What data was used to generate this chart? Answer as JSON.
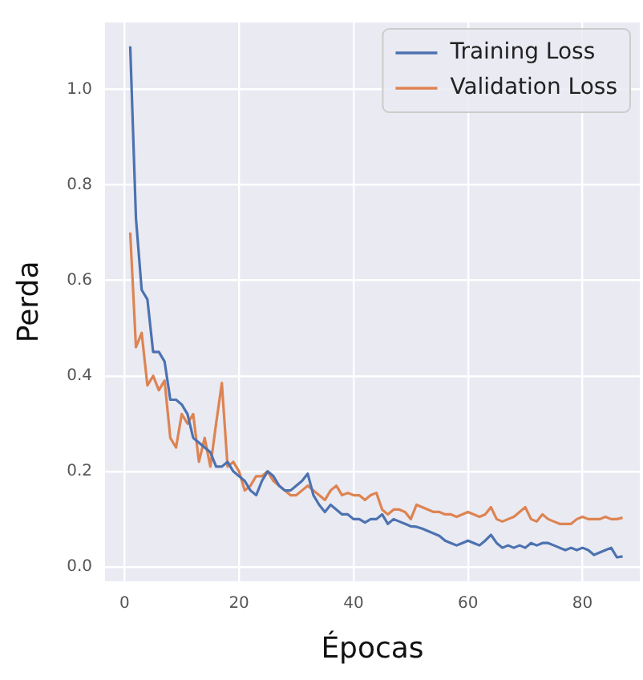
{
  "chart_data": {
    "type": "line",
    "xlabel": "Épocas",
    "ylabel": "Perda",
    "x": [
      1,
      2,
      3,
      4,
      5,
      6,
      7,
      8,
      9,
      10,
      11,
      12,
      13,
      14,
      15,
      16,
      17,
      18,
      19,
      20,
      21,
      22,
      23,
      24,
      25,
      26,
      27,
      28,
      29,
      30,
      31,
      32,
      33,
      34,
      35,
      36,
      37,
      38,
      39,
      40,
      41,
      42,
      43,
      44,
      45,
      46,
      47,
      48,
      49,
      50,
      51,
      52,
      53,
      54,
      55,
      56,
      57,
      58,
      59,
      60,
      61,
      62,
      63,
      64,
      65,
      66,
      67,
      68,
      69,
      70,
      71,
      72,
      73,
      74,
      75,
      76,
      77,
      78,
      79,
      80,
      81,
      82,
      83,
      84,
      85,
      86,
      87
    ],
    "series": [
      {
        "name": "Training Loss",
        "color": "#4c72b0",
        "values": [
          1.09,
          0.73,
          0.58,
          0.56,
          0.45,
          0.45,
          0.43,
          0.35,
          0.35,
          0.34,
          0.32,
          0.27,
          0.26,
          0.25,
          0.24,
          0.21,
          0.21,
          0.22,
          0.2,
          0.19,
          0.18,
          0.16,
          0.15,
          0.18,
          0.2,
          0.19,
          0.17,
          0.16,
          0.16,
          0.17,
          0.18,
          0.195,
          0.15,
          0.13,
          0.115,
          0.13,
          0.12,
          0.11,
          0.11,
          0.1,
          0.1,
          0.093,
          0.1,
          0.1,
          0.11,
          0.09,
          0.1,
          0.095,
          0.09,
          0.085,
          0.084,
          0.08,
          0.075,
          0.07,
          0.065,
          0.055,
          0.05,
          0.045,
          0.05,
          0.055,
          0.05,
          0.045,
          0.055,
          0.067,
          0.05,
          0.04,
          0.045,
          0.04,
          0.045,
          0.04,
          0.05,
          0.045,
          0.05,
          0.05,
          0.045,
          0.04,
          0.035,
          0.04,
          0.035,
          0.04,
          0.035,
          0.025,
          0.03,
          0.035,
          0.04,
          0.02,
          0.022
        ]
      },
      {
        "name": "Validation Loss",
        "color": "#dd8452",
        "values": [
          0.7,
          0.46,
          0.49,
          0.38,
          0.4,
          0.37,
          0.39,
          0.27,
          0.25,
          0.32,
          0.3,
          0.32,
          0.22,
          0.27,
          0.21,
          0.3,
          0.385,
          0.21,
          0.22,
          0.2,
          0.16,
          0.17,
          0.19,
          0.19,
          0.2,
          0.18,
          0.17,
          0.16,
          0.15,
          0.15,
          0.16,
          0.17,
          0.16,
          0.15,
          0.14,
          0.16,
          0.17,
          0.15,
          0.155,
          0.15,
          0.15,
          0.14,
          0.15,
          0.155,
          0.12,
          0.11,
          0.12,
          0.12,
          0.115,
          0.1,
          0.13,
          0.125,
          0.12,
          0.115,
          0.115,
          0.11,
          0.11,
          0.105,
          0.11,
          0.115,
          0.11,
          0.105,
          0.11,
          0.125,
          0.1,
          0.095,
          0.1,
          0.105,
          0.115,
          0.125,
          0.1,
          0.095,
          0.11,
          0.1,
          0.095,
          0.09,
          0.09,
          0.09,
          0.1,
          0.105,
          0.1,
          0.1,
          0.1,
          0.105,
          0.1,
          0.1,
          0.103
        ]
      }
    ],
    "xlim": [
      -3.4,
      90
    ],
    "xticks": [
      0,
      20,
      40,
      60,
      80
    ],
    "ylim": [
      -0.03,
      1.14
    ],
    "yticks": [
      {
        "value": 0,
        "label": "0.0"
      },
      {
        "value": 0.2,
        "label": "0.2"
      },
      {
        "value": 0.4,
        "label": "0.4"
      },
      {
        "value": 0.6,
        "label": "0.6"
      },
      {
        "value": 0.8,
        "label": "0.8"
      },
      {
        "value": 1,
        "label": "1.0"
      }
    ],
    "grid": true,
    "legend": "top right"
  }
}
